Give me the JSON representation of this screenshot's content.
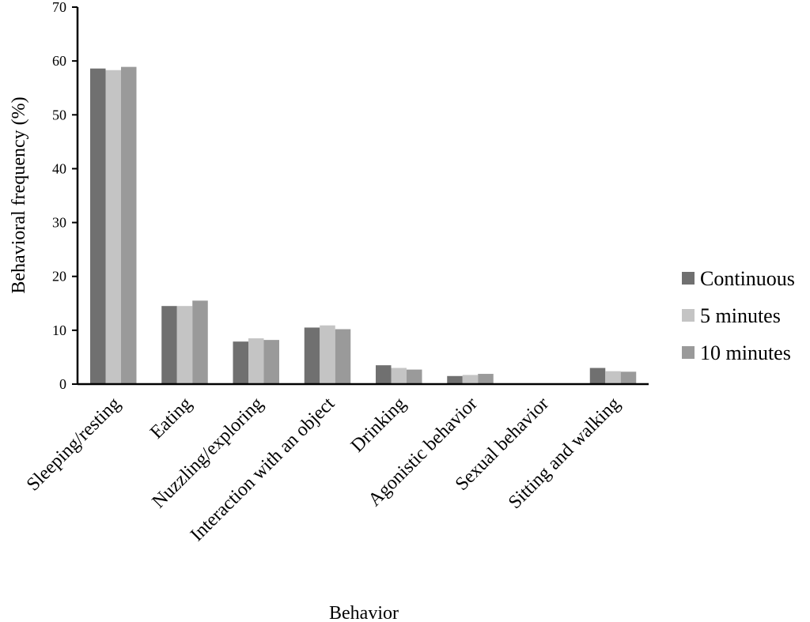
{
  "chart_data": {
    "type": "bar",
    "title": "",
    "xlabel": "Behavior",
    "ylabel": "Behavioral frequency (%)",
    "ylim": [
      0,
      70
    ],
    "yticks": [
      0,
      10,
      20,
      30,
      40,
      50,
      60,
      70
    ],
    "grid": false,
    "legend_position": "right",
    "categories": [
      "Sleeping/resting",
      "Eating",
      "Nuzzling/exploring",
      "Interaction with an object",
      "Drinking",
      "Agonistic behavior",
      "Sexual behavior",
      "Sitting and walking"
    ],
    "series": [
      {
        "name": "Continuous",
        "color": "#707070",
        "values": [
          58.6,
          14.5,
          7.9,
          10.5,
          3.5,
          1.5,
          0,
          3.0
        ]
      },
      {
        "name": "5 minutes",
        "color": "#c4c4c4",
        "values": [
          58.3,
          14.5,
          8.5,
          10.9,
          3.0,
          1.7,
          0,
          2.4
        ]
      },
      {
        "name": "10 minutes",
        "color": "#9a9a9a",
        "values": [
          58.9,
          15.5,
          8.2,
          10.2,
          2.7,
          1.9,
          0,
          2.3
        ]
      }
    ]
  }
}
